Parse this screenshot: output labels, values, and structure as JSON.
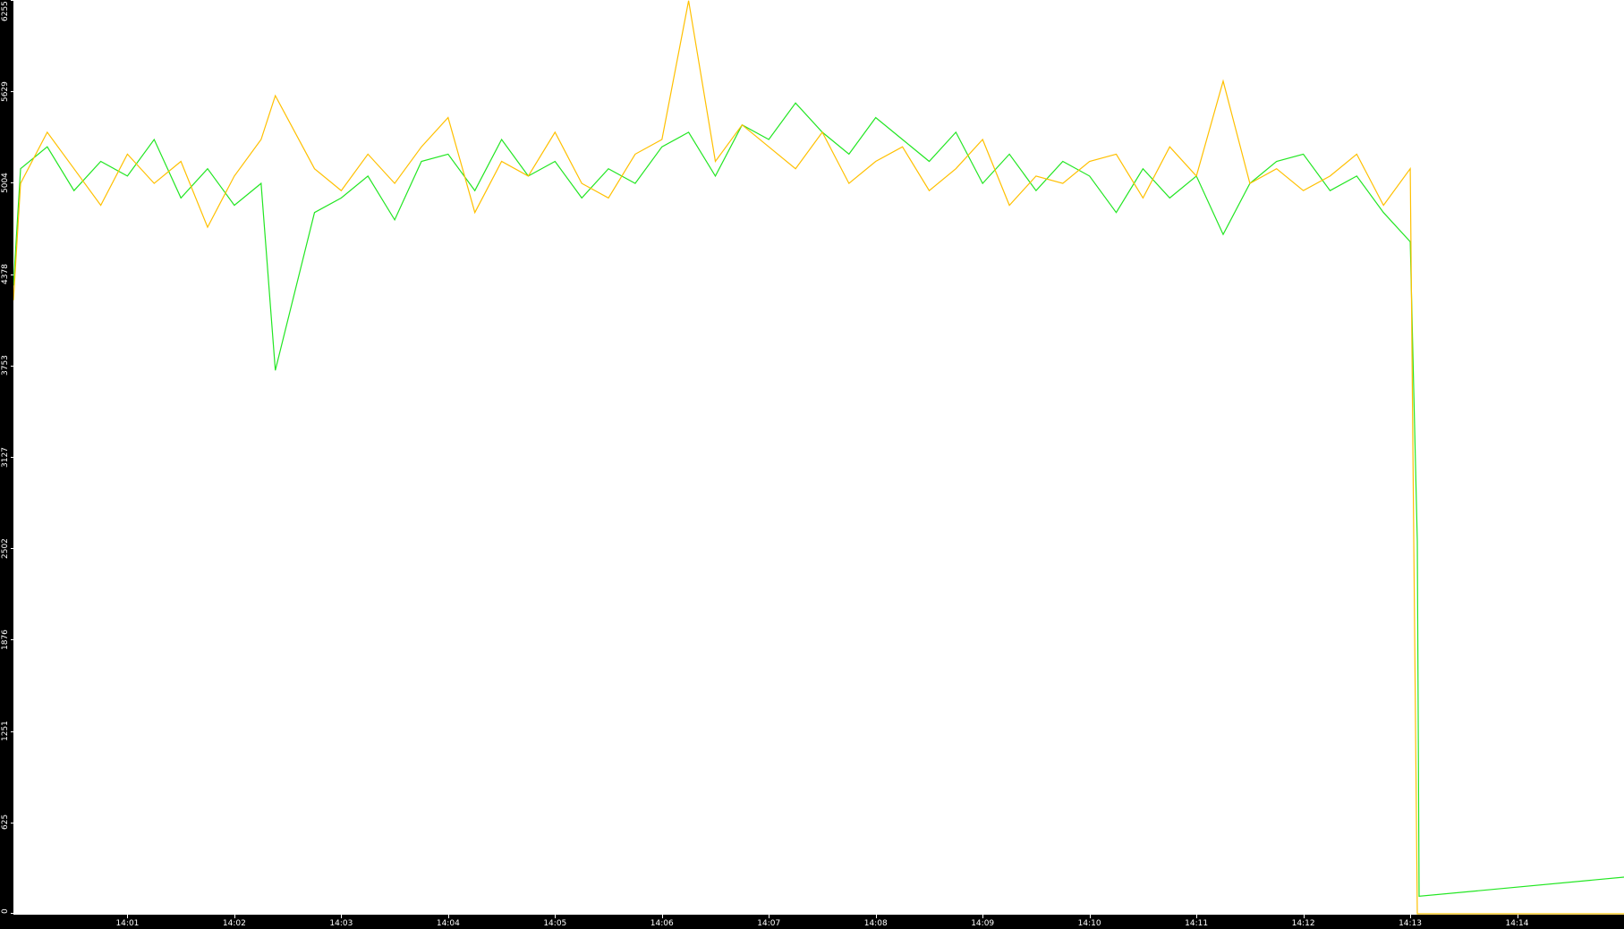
{
  "chart_data": {
    "type": "line",
    "title": "",
    "xlabel": "",
    "ylabel": "",
    "ylim": [
      0,
      6255
    ],
    "xlim": [
      "13:59:56",
      "14:15:00"
    ],
    "grid": false,
    "yticks": [
      "0",
      "625",
      "1251",
      "1876",
      "2502",
      "3127",
      "3753",
      "4378",
      "5004",
      "5629",
      "6255"
    ],
    "xticks": [
      "14:01",
      "14:02",
      "14:03",
      "14:04",
      "14:05",
      "14:06",
      "14:07",
      "14:08",
      "14:09",
      "14:10",
      "14:11",
      "14:12",
      "14:13",
      "14:14"
    ],
    "x": [
      "13:59:56",
      "14:00:00",
      "14:00:15",
      "14:00:30",
      "14:00:45",
      "14:01:00",
      "14:01:15",
      "14:01:30",
      "14:01:45",
      "14:02:00",
      "14:02:15",
      "14:02:23",
      "14:02:45",
      "14:03:00",
      "14:03:15",
      "14:03:30",
      "14:03:45",
      "14:04:00",
      "14:04:15",
      "14:04:30",
      "14:04:45",
      "14:05:00",
      "14:05:15",
      "14:05:30",
      "14:05:45",
      "14:06:00",
      "14:06:15",
      "14:06:30",
      "14:06:45",
      "14:07:00",
      "14:07:15",
      "14:07:30",
      "14:07:45",
      "14:08:00",
      "14:08:15",
      "14:08:30",
      "14:08:45",
      "14:09:00",
      "14:09:15",
      "14:09:30",
      "14:09:45",
      "14:10:00",
      "14:10:15",
      "14:10:30",
      "14:10:45",
      "14:11:00",
      "14:11:15",
      "14:11:30",
      "14:11:45",
      "14:12:00",
      "14:12:15",
      "14:12:30",
      "14:12:45",
      "14:13:00",
      "14:13:04",
      "14:13:05",
      "14:15:00"
    ],
    "series": [
      {
        "color": "#22e622",
        "values": [
          4300,
          5100,
          5250,
          4950,
          5150,
          5050,
          5300,
          4900,
          5100,
          4850,
          5000,
          3720,
          4800,
          4900,
          5050,
          4750,
          5150,
          5200,
          4950,
          5300,
          5050,
          5150,
          4900,
          5100,
          5000,
          5250,
          5350,
          5050,
          5400,
          5300,
          5550,
          5350,
          5200,
          5450,
          5300,
          5150,
          5350,
          5000,
          5200,
          4950,
          5150,
          5050,
          4800,
          5100,
          4900,
          5050,
          4650,
          5000,
          5150,
          5200,
          4950,
          5050,
          4800,
          4600,
          2550,
          120,
          251
        ]
      },
      {
        "color": "#ffc000",
        "values": [
          4200,
          5000,
          5350,
          5100,
          4850,
          5200,
          5000,
          5150,
          4700,
          5050,
          5300,
          5600,
          5100,
          4950,
          5200,
          5000,
          5250,
          5450,
          4800,
          5150,
          5050,
          5350,
          5000,
          4900,
          5200,
          5300,
          6250,
          5150,
          5400,
          5250,
          5100,
          5350,
          5000,
          5150,
          5250,
          4950,
          5100,
          5300,
          4850,
          5050,
          5000,
          5150,
          5200,
          4900,
          5250,
          5050,
          5700,
          5000,
          5100,
          4950,
          5050,
          5200,
          4850,
          5100,
          0,
          0,
          0
        ]
      }
    ]
  }
}
